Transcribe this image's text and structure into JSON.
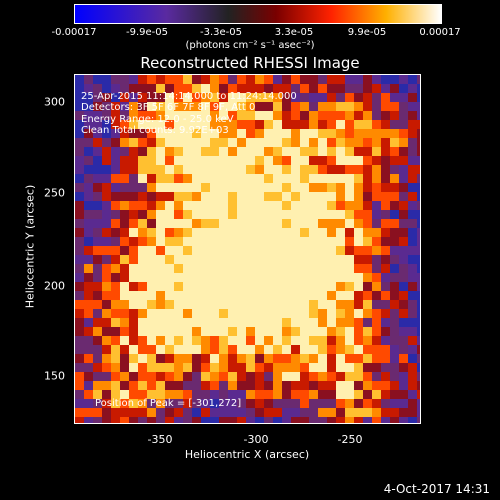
{
  "colorbar": {
    "ticks": [
      "-0.00017",
      "-9.9e-05",
      "-3.3e-05",
      "3.3e-05",
      "9.9e-05",
      "0.00017"
    ],
    "units": "(photons cm⁻² s⁻¹ asec⁻²)"
  },
  "title": "Reconstructed RHESSI Image",
  "info": {
    "time": "25-Apr-2015 11:14:14.000 to 11:24:14.000",
    "detectors": "Detectors: 3F 5F 6F 7F 8F 9F, Att 0",
    "energy": "Energy Range: 12.0 - 25.0 keV",
    "clean": "Clean    Total counts: 9.92E+03",
    "peak": "Position of Peak = [-301,272]"
  },
  "axes": {
    "xlabel": "Heliocentric X (arcsec)",
    "ylabel": "Heliocentric Y (arcsec)",
    "xticks": [
      "-350",
      "-300",
      "-250"
    ],
    "yticks": [
      "300",
      "250",
      "200",
      "150"
    ]
  },
  "footer": {
    "date": "4-Oct-2017 14:31"
  },
  "colors": {
    "low": "#0000ff",
    "mid": "#5a2a80",
    "high": "#ff8800",
    "peak": "#ffffcc"
  }
}
